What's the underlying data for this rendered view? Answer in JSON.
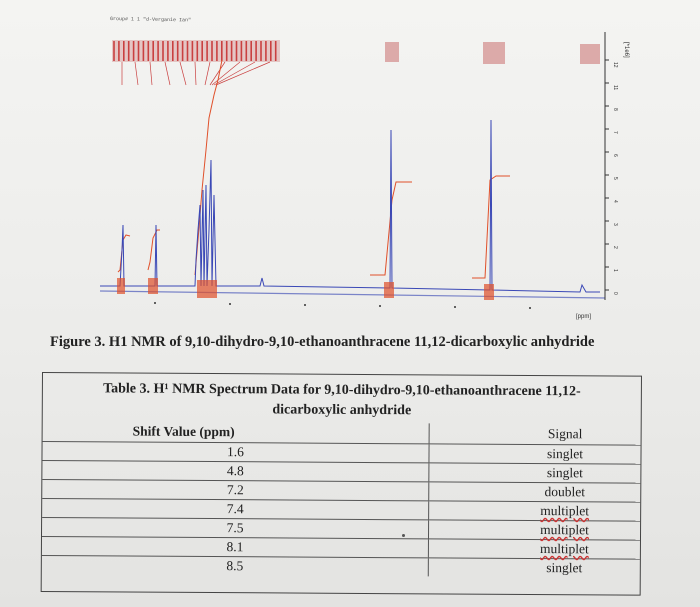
{
  "spectrum": {
    "header_text": "Group# 1 1 \"d-Verganie Ian\"",
    "x_axis_unit": "[ppm]",
    "y_axis_unit": "[*1e6]",
    "y_ticks": [
      "12",
      "11",
      "8",
      "7",
      "6",
      "5",
      "4",
      "3",
      "2",
      "1",
      "0"
    ],
    "colors": {
      "trace": "#3a48b6",
      "integral": "#e0502a",
      "labels": "#c94040"
    }
  },
  "figure_caption": "Figure 3. H1 NMR of 9,10-dihydro-9,10-ethanoanthracene 11,12-dicarboxylic anhydride",
  "table": {
    "title_line1": "Table 3. H¹ NMR Spectrum Data for 9,10-dihydro-9,10-ethanoanthracene 11,12-",
    "title_line2": "dicarboxylic anhydride",
    "col_headers": [
      "Shift Value (ppm)",
      "Signal"
    ],
    "rows": [
      {
        "shift": "1.6",
        "signal": "singlet"
      },
      {
        "shift": "4.8",
        "signal": "singlet"
      },
      {
        "shift": "7.2",
        "signal": "doublet"
      },
      {
        "shift": "7.4",
        "signal": "multiplet"
      },
      {
        "shift": "7.5",
        "signal": "multiplet"
      },
      {
        "shift": "8.1",
        "signal": "multiplet"
      },
      {
        "shift": "8.5",
        "signal": "singlet"
      }
    ]
  }
}
